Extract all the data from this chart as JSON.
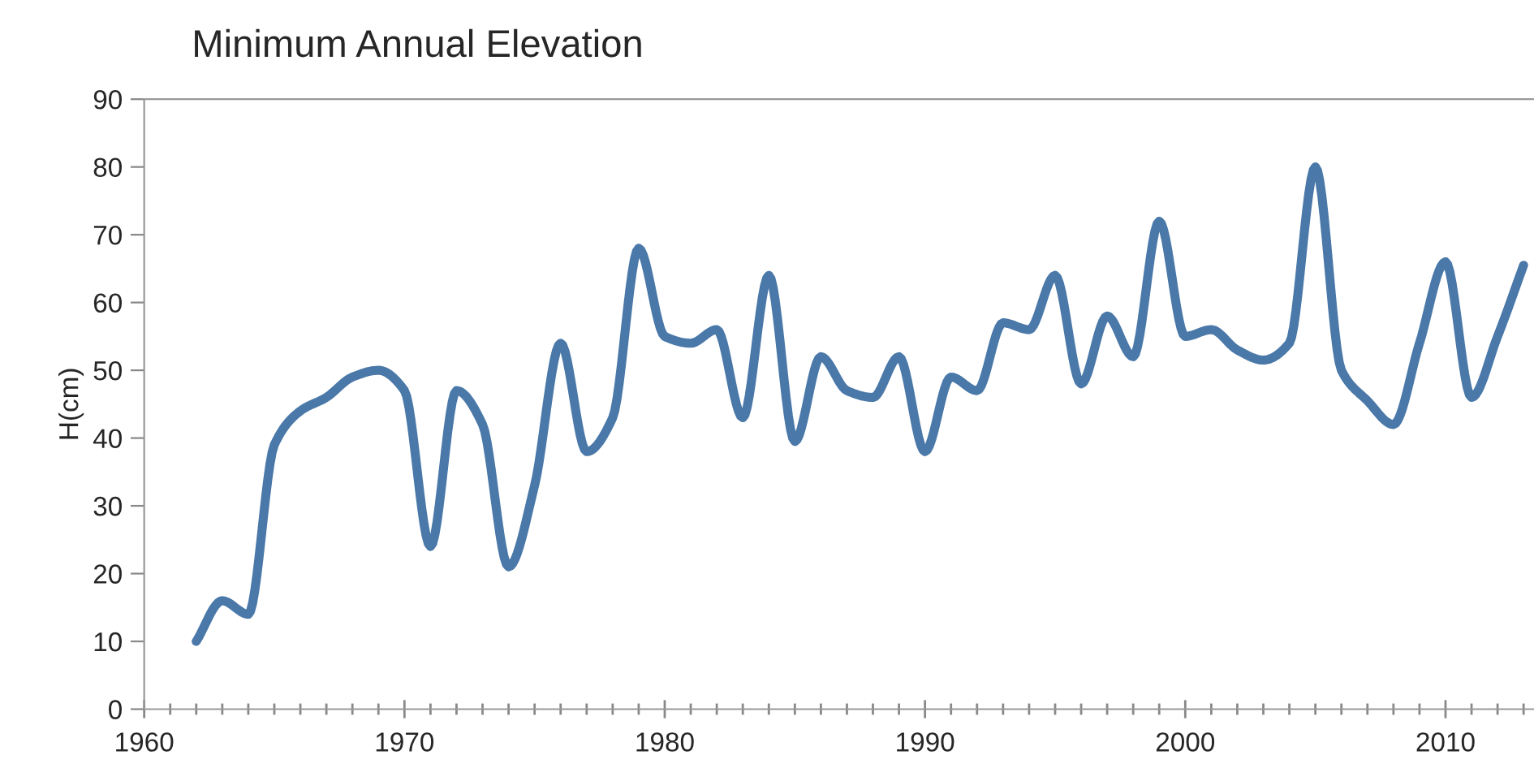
{
  "chart_data": {
    "type": "line",
    "title": "Minimum Annual Elevation",
    "ylabel": "H(cm)",
    "x": [
      1962,
      1963,
      1964,
      1965,
      1966,
      1967,
      1968,
      1969,
      1970,
      1971,
      1972,
      1973,
      1974,
      1975,
      1976,
      1977,
      1978,
      1979,
      1980,
      1981,
      1982,
      1983,
      1984,
      1985,
      1986,
      1987,
      1988,
      1989,
      1990,
      1991,
      1992,
      1993,
      1994,
      1995,
      1996,
      1997,
      1998,
      1999,
      2000,
      2001,
      2002,
      2003,
      2004,
      2005,
      2006,
      2007,
      2008,
      2009,
      2010,
      2011,
      2012,
      2013
    ],
    "series": [
      {
        "color": "#4a78a8",
        "values": [
          10,
          16,
          14,
          39,
          44,
          46,
          49,
          50,
          47,
          24,
          47,
          42,
          21,
          33,
          54,
          38,
          43,
          68,
          55,
          54,
          56,
          43,
          64,
          39.5,
          52,
          47,
          46,
          52,
          38,
          49,
          47,
          57,
          56,
          64,
          48,
          58,
          52,
          72,
          55,
          56,
          53,
          51.5,
          54,
          80,
          50,
          45.5,
          42,
          54,
          66,
          46,
          55,
          65.5
        ]
      }
    ],
    "xlim": [
      1960,
      2013.4
    ],
    "xticks": [
      1960,
      {
        "value": 1961,
        "label": null
      },
      {
        "value": 1962,
        "label": null
      },
      {
        "value": 1963,
        "label": null
      },
      {
        "value": 1964,
        "label": null
      },
      {
        "value": 1965,
        "label": null
      },
      {
        "value": 1966,
        "label": null
      },
      {
        "value": 1967,
        "label": null
      },
      {
        "value": 1968,
        "label": null
      },
      {
        "value": 1969,
        "label": null
      },
      1970,
      {
        "value": 1971,
        "label": null
      },
      {
        "value": 1972,
        "label": null
      },
      {
        "value": 1973,
        "label": null
      },
      {
        "value": 1974,
        "label": null
      },
      {
        "value": 1975,
        "label": null
      },
      {
        "value": 1976,
        "label": null
      },
      {
        "value": 1977,
        "label": null
      },
      {
        "value": 1978,
        "label": null
      },
      {
        "value": 1979,
        "label": null
      },
      1980,
      {
        "value": 1981,
        "label": null
      },
      {
        "value": 1982,
        "label": null
      },
      {
        "value": 1983,
        "label": null
      },
      {
        "value": 1984,
        "label": null
      },
      {
        "value": 1985,
        "label": null
      },
      {
        "value": 1986,
        "label": null
      },
      {
        "value": 1987,
        "label": null
      },
      {
        "value": 1988,
        "label": null
      },
      {
        "value": 1989,
        "label": null
      },
      1990,
      {
        "value": 1991,
        "label": null
      },
      {
        "value": 1992,
        "label": null
      },
      {
        "value": 1993,
        "label": null
      },
      {
        "value": 1994,
        "label": null
      },
      {
        "value": 1995,
        "label": null
      },
      {
        "value": 1996,
        "label": null
      },
      {
        "value": 1997,
        "label": null
      },
      {
        "value": 1998,
        "label": null
      },
      {
        "value": 1999,
        "label": null
      },
      2000,
      {
        "value": 2001,
        "label": null
      },
      {
        "value": 2002,
        "label": null
      },
      {
        "value": 2003,
        "label": null
      },
      {
        "value": 2004,
        "label": null
      },
      {
        "value": 2005,
        "label": null
      },
      {
        "value": 2006,
        "label": null
      },
      {
        "value": 2007,
        "label": null
      },
      {
        "value": 2008,
        "label": null
      },
      {
        "value": 2009,
        "label": null
      },
      2010,
      {
        "value": 2011,
        "label": null
      },
      {
        "value": 2012,
        "label": null
      },
      {
        "value": 2013,
        "label": null
      }
    ],
    "ylim": [
      0,
      90
    ],
    "yticks": [
      0,
      10,
      20,
      30,
      40,
      50,
      60,
      70,
      80,
      90
    ],
    "grid": false,
    "legend": false,
    "marker": "none",
    "line_style": "solid"
  }
}
